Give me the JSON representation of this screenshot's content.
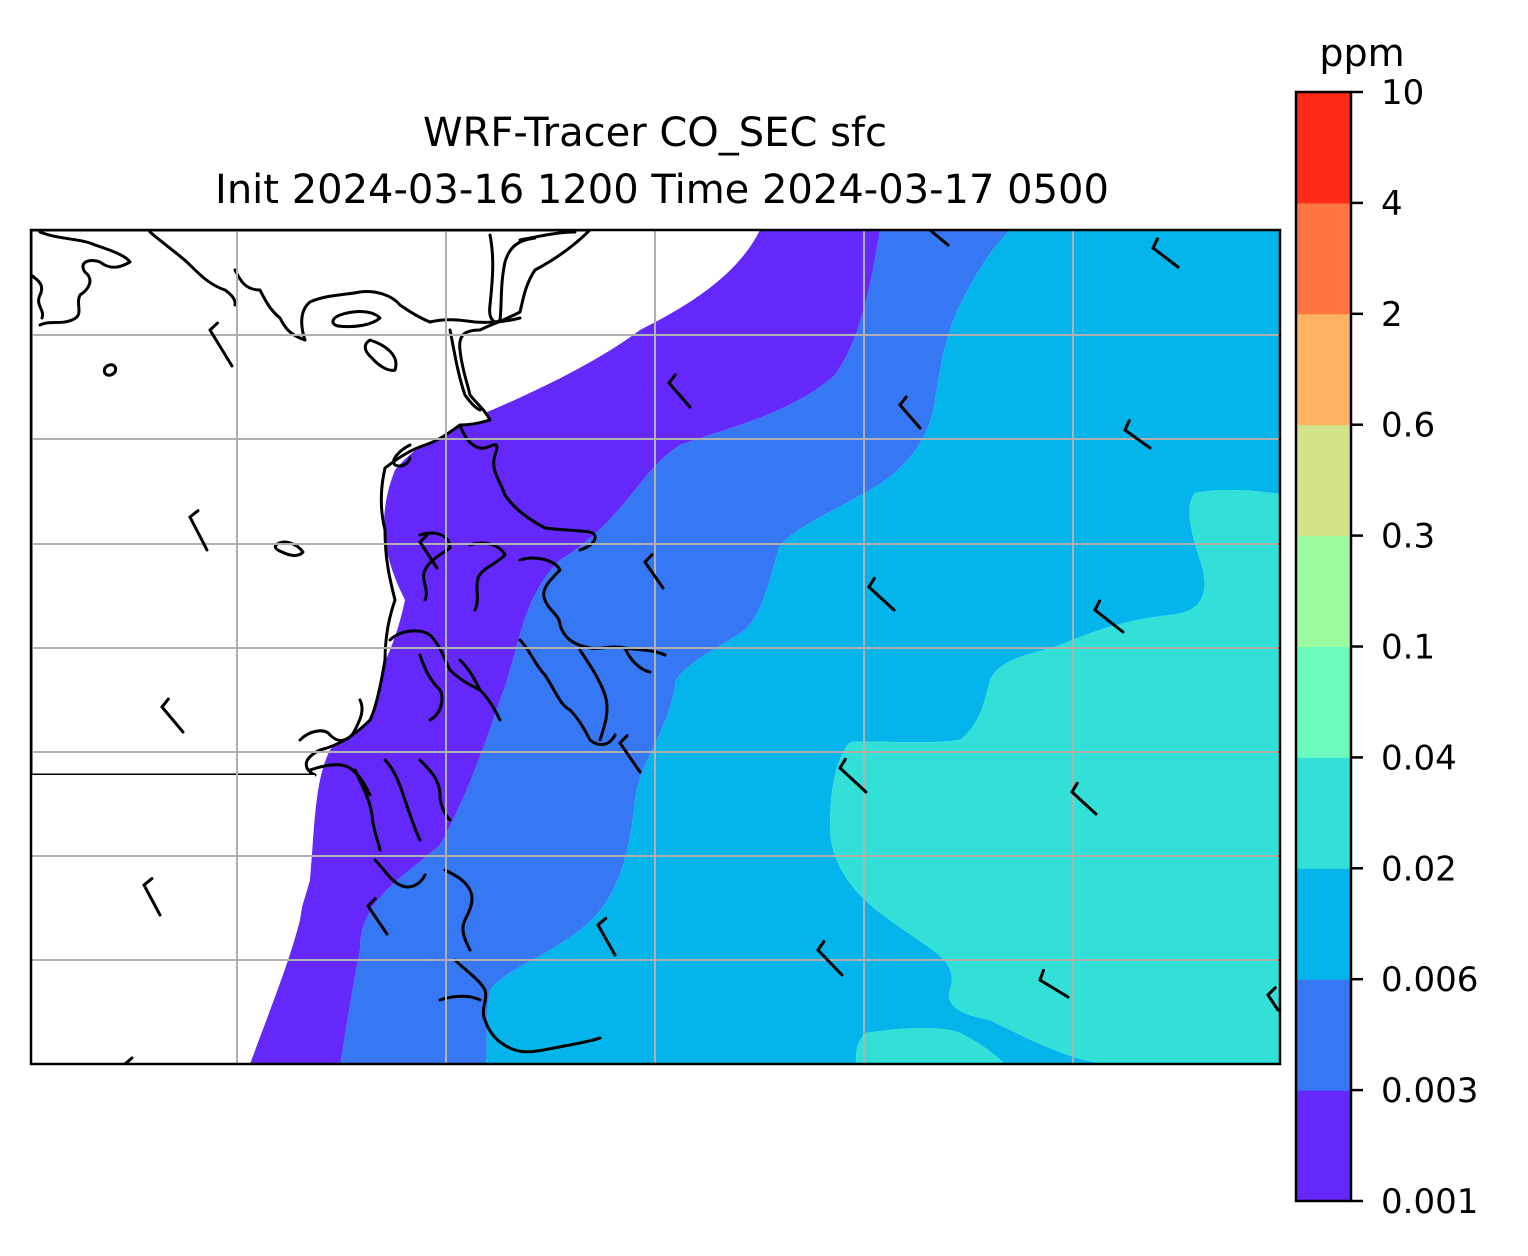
{
  "title": {
    "line1": "WRF-Tracer CO_SEC sfc",
    "line2": "Init 2024-03-16 1200 Time 2024-03-17 0500"
  },
  "colorbar": {
    "unit": "ppm",
    "levels": [
      "0.001",
      "0.003",
      "0.006",
      "0.02",
      "0.04",
      "0.1",
      "0.3",
      "0.6",
      "2",
      "4",
      "10"
    ],
    "colors": [
      "#6428fa",
      "#3677f4",
      "#04b5ec",
      "#33e0d8",
      "#6bfcbd",
      "#9bfd9f",
      "#d2e38a",
      "#fdb462",
      "#ff7640",
      "#ff2a18"
    ]
  },
  "map": {
    "gridlines": true,
    "land_color": "#ffffff",
    "coastline_color": "#000000",
    "wind_barbs": true
  }
}
